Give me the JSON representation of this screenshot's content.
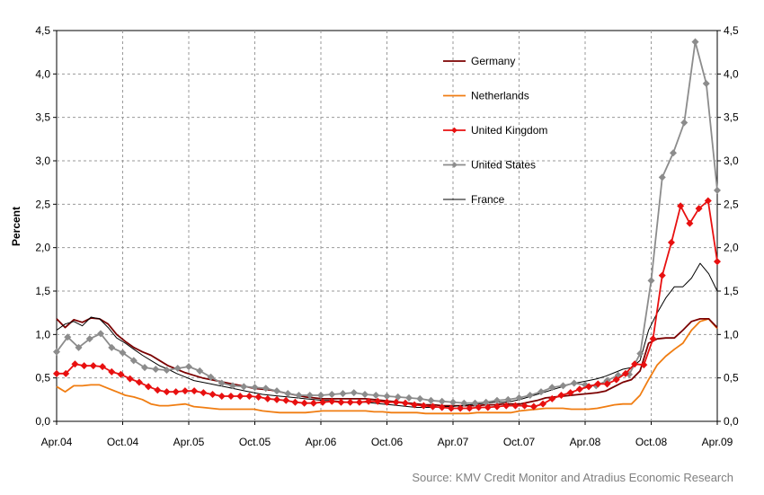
{
  "chart_data": {
    "type": "line",
    "ylabel": "Percent",
    "xlabel": "",
    "ylim": [
      0,
      4.5
    ],
    "y_ticks": [
      "0,0",
      "0,5",
      "1,0",
      "1,5",
      "2,0",
      "2,5",
      "3,0",
      "3,5",
      "4,0",
      "4,5"
    ],
    "x_tick_labels": [
      "Apr.04",
      "Oct.04",
      "Apr.05",
      "Oct.05",
      "Apr.06",
      "Oct.06",
      "Apr.07",
      "Oct.07",
      "Apr.08",
      "Oct.08",
      "Apr.09"
    ],
    "x_start": "Apr.04",
    "x_end": "Apr.09",
    "grid": "dashed",
    "legend_position": "top-right",
    "source": "Source: KMV Credit Monitor and Atradius Economic Research",
    "series": [
      {
        "name": "Germany",
        "color": "#7b0000",
        "marker": "none",
        "values": [
          1.18,
          1.08,
          1.17,
          1.14,
          1.19,
          1.18,
          1.12,
          1.0,
          0.92,
          0.85,
          0.8,
          0.76,
          0.7,
          0.64,
          0.6,
          0.56,
          0.53,
          0.5,
          0.48,
          0.46,
          0.44,
          0.42,
          0.4,
          0.38,
          0.37,
          0.36,
          0.34,
          0.32,
          0.3,
          0.28,
          0.27,
          0.26,
          0.26,
          0.26,
          0.26,
          0.26,
          0.26,
          0.25,
          0.24,
          0.23,
          0.22,
          0.21,
          0.2,
          0.19,
          0.19,
          0.18,
          0.18,
          0.18,
          0.18,
          0.18,
          0.19,
          0.19,
          0.2,
          0.2,
          0.2,
          0.22,
          0.24,
          0.27,
          0.28,
          0.29,
          0.3,
          0.31,
          0.32,
          0.33,
          0.35,
          0.4,
          0.45,
          0.48,
          0.58,
          0.9,
          0.95,
          0.96,
          0.96,
          1.05,
          1.15,
          1.18,
          1.18,
          1.08
        ]
      },
      {
        "name": "Netherlands",
        "color": "#f07d12",
        "marker": "none",
        "values": [
          0.4,
          0.34,
          0.41,
          0.41,
          0.42,
          0.42,
          0.38,
          0.34,
          0.3,
          0.28,
          0.25,
          0.2,
          0.18,
          0.18,
          0.19,
          0.2,
          0.17,
          0.16,
          0.15,
          0.14,
          0.14,
          0.14,
          0.14,
          0.14,
          0.12,
          0.11,
          0.1,
          0.1,
          0.1,
          0.1,
          0.11,
          0.12,
          0.12,
          0.12,
          0.12,
          0.12,
          0.12,
          0.11,
          0.11,
          0.1,
          0.1,
          0.1,
          0.1,
          0.09,
          0.09,
          0.09,
          0.09,
          0.09,
          0.09,
          0.1,
          0.1,
          0.1,
          0.1,
          0.1,
          0.12,
          0.13,
          0.14,
          0.15,
          0.15,
          0.15,
          0.14,
          0.14,
          0.14,
          0.15,
          0.17,
          0.19,
          0.2,
          0.2,
          0.3,
          0.48,
          0.65,
          0.75,
          0.83,
          0.9,
          1.05,
          1.15,
          1.18,
          1.07
        ]
      },
      {
        "name": "United Kingdom",
        "color": "#e81010",
        "marker": "diamond",
        "values": [
          0.55,
          0.55,
          0.66,
          0.64,
          0.64,
          0.63,
          0.57,
          0.54,
          0.49,
          0.45,
          0.4,
          0.36,
          0.34,
          0.34,
          0.35,
          0.35,
          0.33,
          0.31,
          0.29,
          0.29,
          0.29,
          0.29,
          0.28,
          0.26,
          0.25,
          0.24,
          0.22,
          0.21,
          0.21,
          0.22,
          0.23,
          0.22,
          0.22,
          0.22,
          0.23,
          0.23,
          0.22,
          0.22,
          0.21,
          0.19,
          0.18,
          0.17,
          0.16,
          0.15,
          0.15,
          0.15,
          0.16,
          0.16,
          0.17,
          0.18,
          0.18,
          0.18,
          0.17,
          0.2,
          0.26,
          0.3,
          0.33,
          0.37,
          0.4,
          0.43,
          0.43,
          0.48,
          0.55,
          0.66,
          0.65,
          0.95,
          1.68,
          2.06,
          2.48,
          2.28,
          2.45,
          2.54,
          1.84
        ]
      },
      {
        "name": "United States",
        "color": "#8c8c8c",
        "marker": "diamond",
        "values": [
          0.8,
          0.97,
          0.85,
          0.95,
          1.01,
          0.85,
          0.79,
          0.7,
          0.62,
          0.6,
          0.59,
          0.61,
          0.63,
          0.58,
          0.51,
          0.44,
          0.41,
          0.4,
          0.39,
          0.38,
          0.35,
          0.32,
          0.3,
          0.3,
          0.3,
          0.31,
          0.32,
          0.33,
          0.31,
          0.3,
          0.29,
          0.28,
          0.27,
          0.26,
          0.24,
          0.23,
          0.22,
          0.21,
          0.21,
          0.22,
          0.24,
          0.25,
          0.27,
          0.3,
          0.34,
          0.39,
          0.41,
          0.44,
          0.42,
          0.41,
          0.47,
          0.53,
          0.54,
          0.78,
          1.62,
          2.81,
          3.09,
          3.44,
          4.37,
          3.89,
          2.66
        ]
      },
      {
        "name": "France",
        "color": "#000000",
        "marker": "none",
        "values": [
          1.05,
          1.12,
          1.15,
          1.1,
          1.2,
          1.18,
          1.08,
          0.96,
          0.9,
          0.83,
          0.76,
          0.7,
          0.64,
          0.6,
          0.55,
          0.51,
          0.47,
          0.45,
          0.43,
          0.41,
          0.39,
          0.37,
          0.35,
          0.33,
          0.31,
          0.3,
          0.29,
          0.28,
          0.27,
          0.26,
          0.25,
          0.24,
          0.24,
          0.23,
          0.22,
          0.22,
          0.22,
          0.21,
          0.2,
          0.19,
          0.18,
          0.17,
          0.16,
          0.16,
          0.16,
          0.17,
          0.17,
          0.18,
          0.19,
          0.2,
          0.21,
          0.22,
          0.22,
          0.23,
          0.25,
          0.28,
          0.31,
          0.34,
          0.37,
          0.4,
          0.43,
          0.45,
          0.47,
          0.49,
          0.52,
          0.56,
          0.6,
          0.62,
          0.7,
          1.05,
          1.25,
          1.42,
          1.55,
          1.55,
          1.65,
          1.82,
          1.7,
          1.5
        ]
      }
    ]
  }
}
